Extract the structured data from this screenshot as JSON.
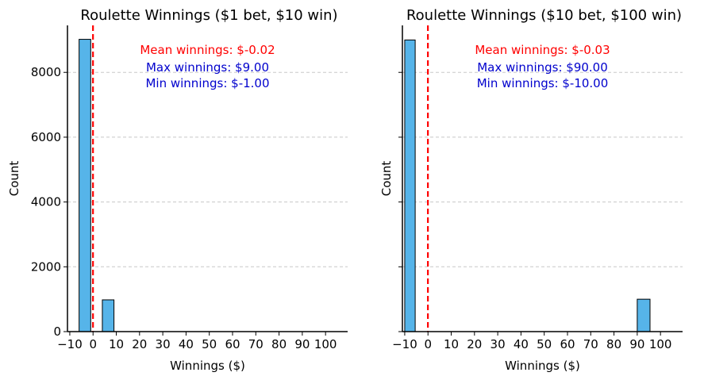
{
  "chart_data": [
    {
      "type": "bar",
      "title": "Roulette Winnings ($1 bet, $10 win)",
      "xlabel": "Winnings ($)",
      "ylabel": "Count",
      "xlim": [
        -11,
        109.5
      ],
      "ylim": [
        0,
        9450
      ],
      "xticks": [
        -10,
        0,
        10,
        20,
        30,
        40,
        50,
        60,
        70,
        80,
        90,
        100
      ],
      "yticks": [
        0,
        2000,
        4000,
        6000,
        8000
      ],
      "show_ytick_labels": true,
      "grid": "y-dashed",
      "bins": [
        {
          "x0": -6,
          "x1": -1,
          "count": 9020
        },
        {
          "x0": 4,
          "x1": 9,
          "count": 980
        }
      ],
      "mean_line": {
        "x": -0.02,
        "color": "#ff0000"
      },
      "annotations": {
        "mean": "Mean winnings: $-0.02",
        "max": "Max winnings: $9.00",
        "min": "Min winnings: $-1.00"
      }
    },
    {
      "type": "bar",
      "title": "Roulette Winnings ($10 bet, $100 win)",
      "xlabel": "Winnings ($)",
      "ylabel": "Count",
      "xlim": [
        -11,
        109.5
      ],
      "ylim": [
        0,
        9450
      ],
      "xticks": [
        -10,
        0,
        10,
        20,
        30,
        40,
        50,
        60,
        70,
        80,
        90,
        100
      ],
      "yticks": [
        0,
        2000,
        4000,
        6000,
        8000
      ],
      "show_ytick_labels": false,
      "grid": "y-dashed",
      "bins": [
        {
          "x0": -10,
          "x1": -5.5,
          "count": 9000
        },
        {
          "x0": 90,
          "x1": 95.5,
          "count": 1000
        }
      ],
      "mean_line": {
        "x": -0.03,
        "color": "#ff0000"
      },
      "annotations": {
        "mean": "Mean winnings: $-0.03",
        "max": "Max winnings: $90.00",
        "min": "Min winnings: $-10.00"
      }
    }
  ],
  "colors": {
    "bar_fill": "#56b4e9",
    "bar_edge": "#000000",
    "mean_text": "#ff0000",
    "stats_text": "#0000cd",
    "grid": "#c8c8c8"
  }
}
